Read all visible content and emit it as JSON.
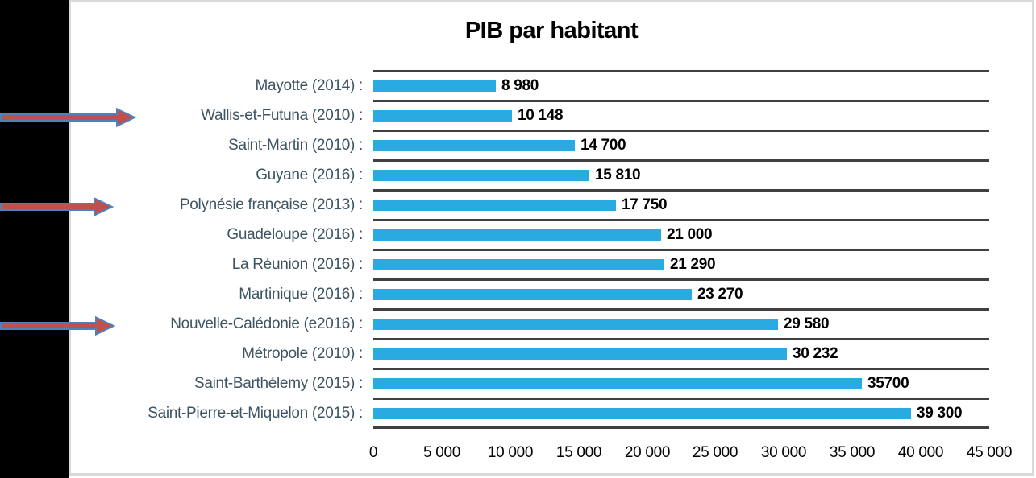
{
  "chart_data": {
    "type": "bar",
    "orientation": "horizontal",
    "title": "PIB par habitant",
    "xlabel": "",
    "ylabel": "",
    "xlim": [
      0,
      45000
    ],
    "grid": true,
    "x_tick_labels": [
      "0",
      "5 000",
      "10 000",
      "15 000",
      "20 000",
      "25 000",
      "30 000",
      "35 000",
      "40 000",
      "45 000"
    ],
    "rows": [
      {
        "label": "Mayotte (2014) :",
        "value": 8980,
        "value_label": "8 980",
        "arrow": false
      },
      {
        "label": "Wallis-et-Futuna (2010) :",
        "value": 10148,
        "value_label": "10 148",
        "arrow": true
      },
      {
        "label": "Saint-Martin (2010) :",
        "value": 14700,
        "value_label": "14 700",
        "arrow": false
      },
      {
        "label": "Guyane (2016) :",
        "value": 15810,
        "value_label": "15 810",
        "arrow": false
      },
      {
        "label": "Polynésie française (2013) :",
        "value": 17750,
        "value_label": "17 750",
        "arrow": true
      },
      {
        "label": "Guadeloupe (2016) :",
        "value": 21000,
        "value_label": "21 000",
        "arrow": false
      },
      {
        "label": "La Réunion (2016) :",
        "value": 21290,
        "value_label": "21 290",
        "arrow": false
      },
      {
        "label": "Martinique (2016) :",
        "value": 23270,
        "value_label": "23 270",
        "arrow": false
      },
      {
        "label": "Nouvelle-Calédonie (e2016) :",
        "value": 29580,
        "value_label": "29 580",
        "arrow": true
      },
      {
        "label": "Métropole (2010) :",
        "value": 30232,
        "value_label": "30 232",
        "arrow": false
      },
      {
        "label": "Saint-Barthélemy (2015) :",
        "value": 35700,
        "value_label": "35700",
        "arrow": false
      },
      {
        "label": "Saint-Pierre-et-Miquelon (2015) :",
        "value": 39300,
        "value_label": "39 300",
        "arrow": false
      }
    ],
    "colors": {
      "bar": "#29ABE2",
      "gridline": "#404040",
      "category_label": "#3E5463",
      "value_label": "#000000",
      "axis_label": "#000000",
      "title": "#000000",
      "arrow_fill": "#C0504D",
      "arrow_stroke": "#4F81BD",
      "left_band": "#000000",
      "chart_border": "#D9D9D9"
    },
    "legend": null
  }
}
